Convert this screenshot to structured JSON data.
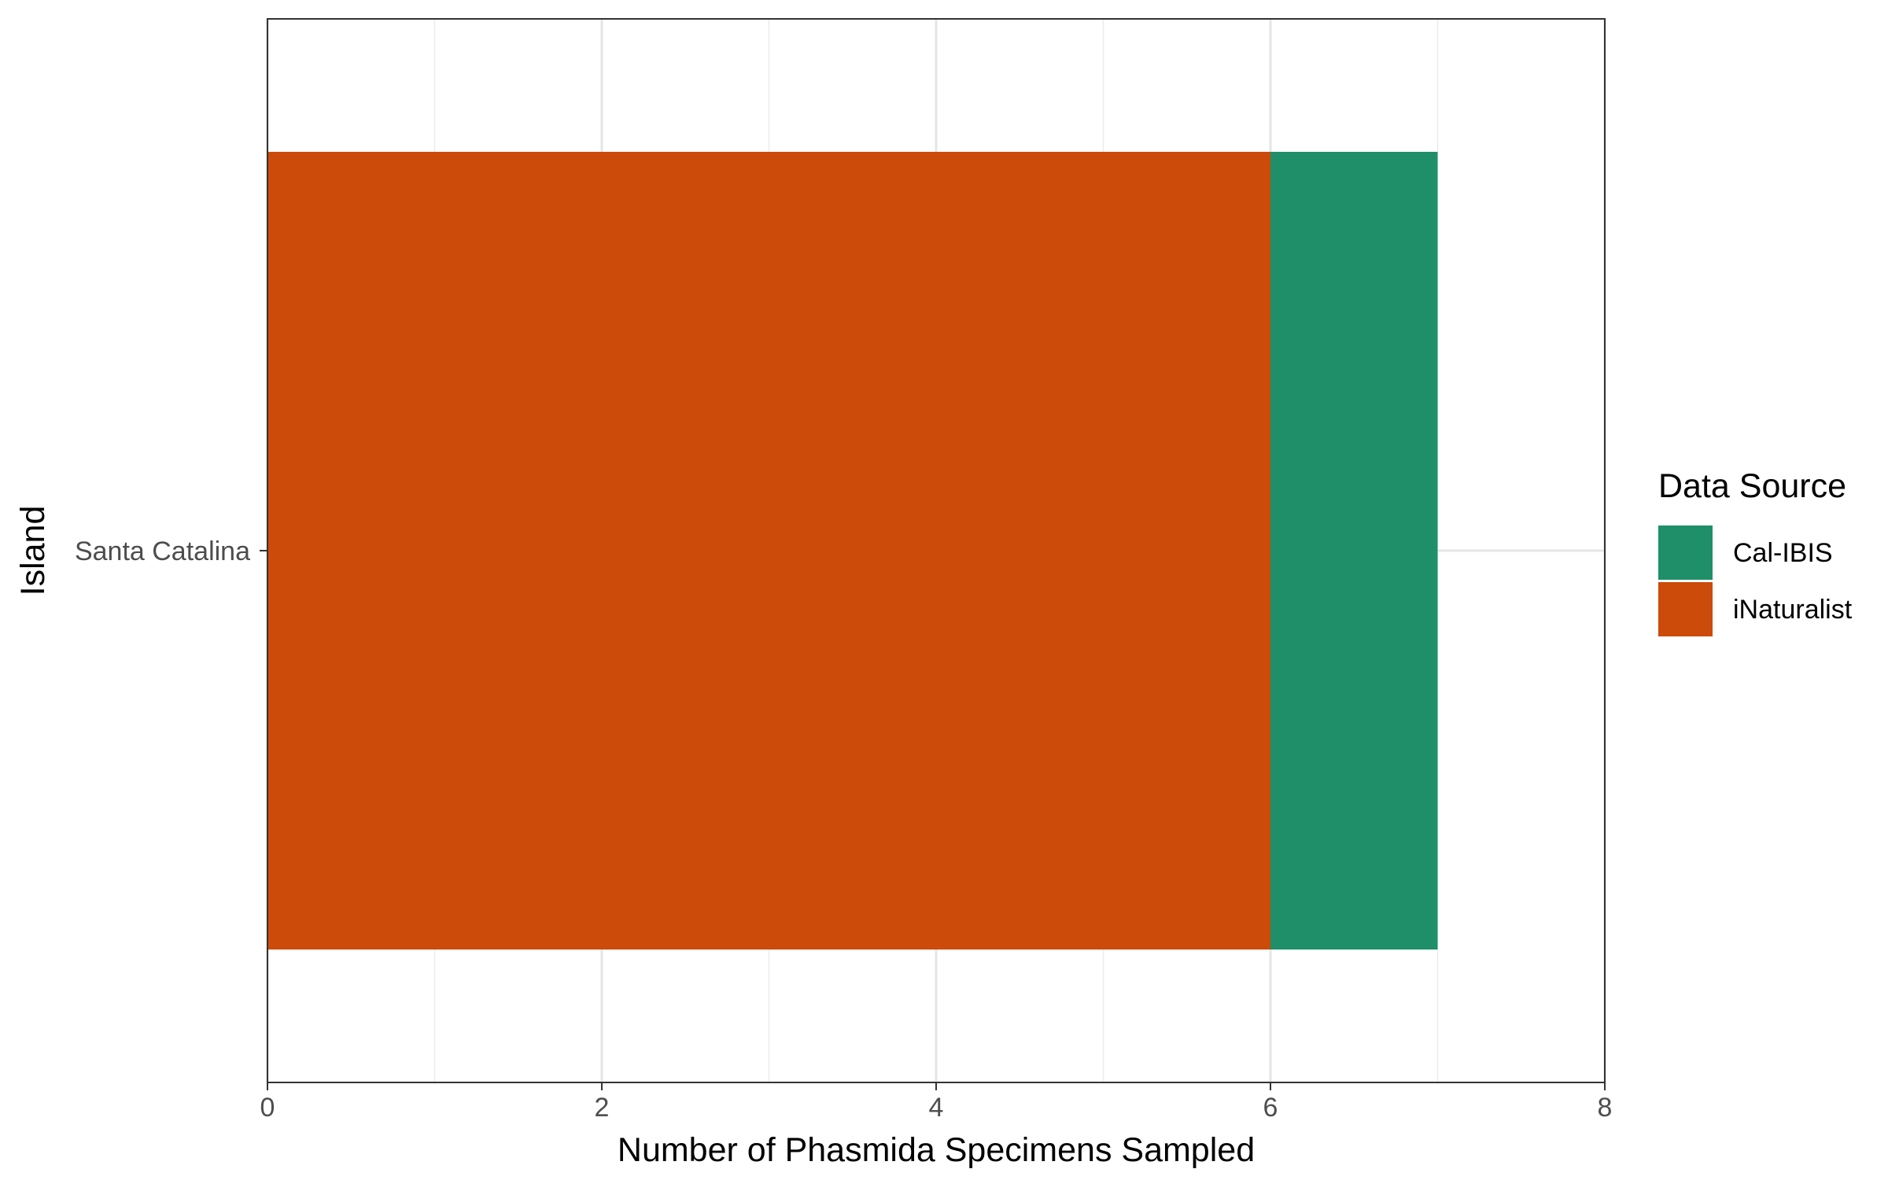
{
  "chart_data": {
    "type": "bar",
    "orientation": "horizontal",
    "stacked": true,
    "categories": [
      "Santa Catalina"
    ],
    "series": [
      {
        "name": "iNaturalist",
        "values": [
          6
        ],
        "color": "#cc4a0a"
      },
      {
        "name": "Cal-IBIS",
        "values": [
          1
        ],
        "color": "#1e8f68"
      }
    ],
    "xlabel": "Number of Phasmida Specimens Sampled",
    "ylabel": "Island",
    "xlim": [
      0,
      8
    ],
    "xticks": [
      "0",
      "2",
      "4",
      "6",
      "8"
    ],
    "grid": true,
    "legend": {
      "title": "Data Source",
      "position": "right",
      "items": [
        "Cal-IBIS",
        "iNaturalist"
      ]
    }
  }
}
